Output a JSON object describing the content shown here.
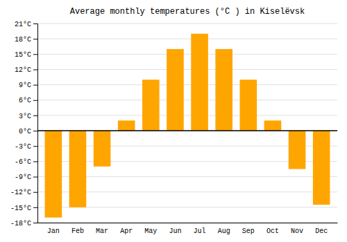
{
  "chart_data": {
    "type": "bar",
    "title": "Average monthly temperatures (°C ) in Kiselëvsk",
    "categories": [
      "Jan",
      "Feb",
      "Mar",
      "Apr",
      "May",
      "Jun",
      "Jul",
      "Aug",
      "Sep",
      "Oct",
      "Nov",
      "Dec"
    ],
    "values": [
      -17,
      -15,
      -7,
      2,
      10,
      16,
      19,
      16,
      10,
      2,
      -7.5,
      -14.5
    ],
    "color": "#FFA500",
    "ylim": [
      -18,
      21
    ],
    "yticks": [
      {
        "value": -18,
        "label": "-18°C"
      },
      {
        "value": -15,
        "label": "-15°C"
      },
      {
        "value": -12,
        "label": "-12°C"
      },
      {
        "value": -9,
        "label": "-9°C"
      },
      {
        "value": -6,
        "label": "-6°C"
      },
      {
        "value": -3,
        "label": "-3°C"
      },
      {
        "value": 0,
        "label": "0°C"
      },
      {
        "value": 3,
        "label": "3°C"
      },
      {
        "value": 6,
        "label": "6°C"
      },
      {
        "value": 9,
        "label": "9°C"
      },
      {
        "value": 12,
        "label": "12°C"
      },
      {
        "value": 15,
        "label": "15°C"
      },
      {
        "value": 18,
        "label": "18°C"
      },
      {
        "value": 21,
        "label": "21°C"
      }
    ],
    "grid": true
  }
}
